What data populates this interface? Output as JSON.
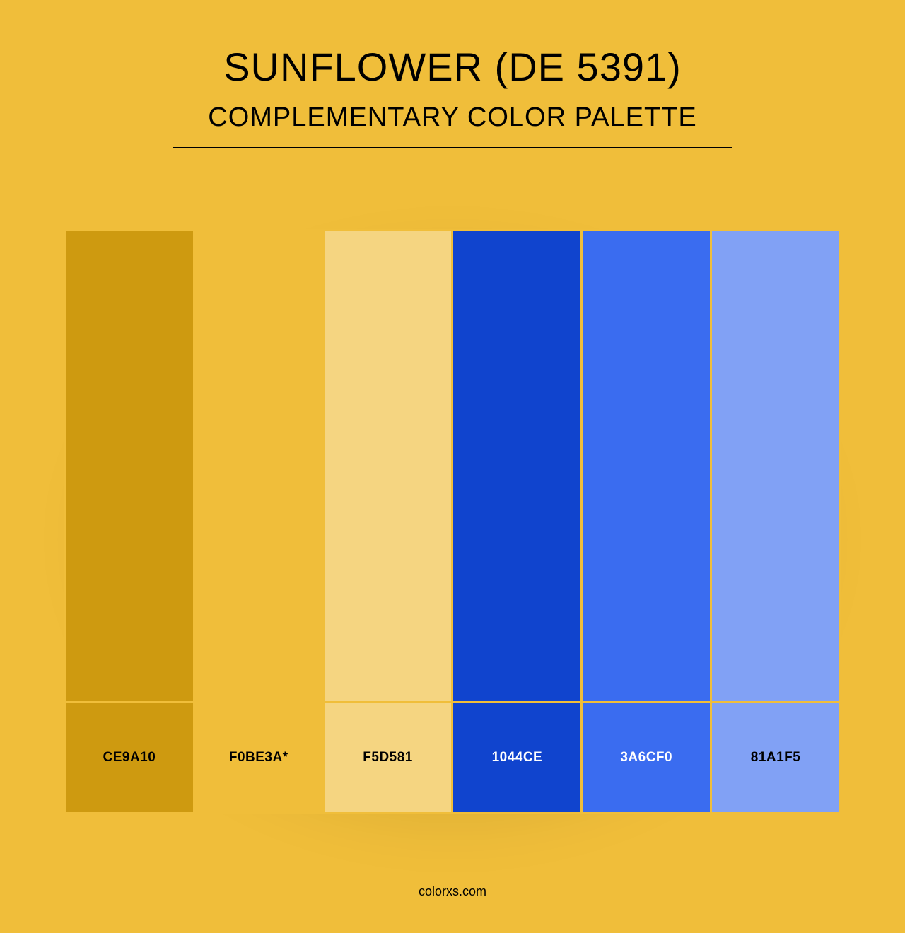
{
  "background_color": "#f0be3a",
  "gap_color": "#f0be3a",
  "title": "SUNFLOWER (DE 5391)",
  "subtitle": "COMPLEMENTARY COLOR PALETTE",
  "footer": "colorxs.com",
  "swatches": [
    {
      "hex": "#ce9a10",
      "label": "CE9A10",
      "label_color": "#000000"
    },
    {
      "hex": "#f0be3a",
      "label": "F0BE3A*",
      "label_color": "#000000"
    },
    {
      "hex": "#f5d581",
      "label": "F5D581",
      "label_color": "#000000"
    },
    {
      "hex": "#1044ce",
      "label": "1044CE",
      "label_color": "#ffffff"
    },
    {
      "hex": "#3a6cf0",
      "label": "3A6CF0",
      "label_color": "#ffffff"
    },
    {
      "hex": "#81a1f5",
      "label": "81A1F5",
      "label_color": "#000000"
    }
  ]
}
